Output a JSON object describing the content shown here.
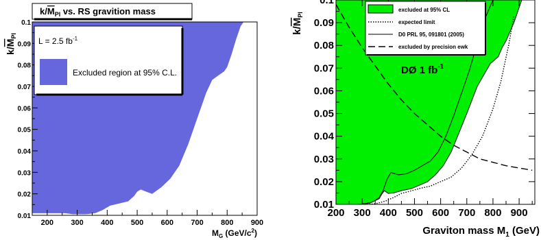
{
  "chart_data": [
    {
      "type": "area",
      "title": "k/M̄Pl vs. RS gravition mass",
      "title_parts": {
        "k": "k/",
        "mbar": "M",
        "sub": "Pl",
        "rest": " vs. RS gravition mass"
      },
      "xlabel": "M_G (GeV/c^2)",
      "xlabel_parts": {
        "m": "M",
        "sub": "G",
        "unit": " (GeV/c",
        "sup": "2",
        "close": ")"
      },
      "ylabel": "k/M̄Pl",
      "ylabel_parts": {
        "k": "k/",
        "m": "M",
        "sub": "Pl"
      },
      "xlim": [
        150,
        900
      ],
      "ylim": [
        0.01,
        0.1
      ],
      "x_ticks": [
        "200",
        "300",
        "400",
        "500",
        "600",
        "700",
        "800",
        "900"
      ],
      "y_ticks": [
        "0.01",
        "0.02",
        "0.03",
        "0.04",
        "0.05",
        "0.06",
        "0.07",
        "0.08",
        "0.09",
        "0.1"
      ],
      "legend": {
        "luminosity_text": "L = 2.5 fb",
        "luminosity_sup": "-1",
        "entry": "Excluded region at 95% C.L.",
        "placement": "top-left"
      },
      "colors": {
        "excluded": "#6666dd"
      },
      "series": [
        {
          "name": "Excluded region at 95% C.L.",
          "x": [
            150,
            235,
            260,
            285,
            300,
            330,
            360,
            385,
            410,
            440,
            470,
            490,
            500,
            512,
            530,
            550,
            580,
            610,
            640,
            670,
            700,
            730,
            750,
            770,
            790,
            800,
            815,
            830,
            845,
            855
          ],
          "y": [
            0.011,
            0.011,
            0.011,
            0.0105,
            0.0105,
            0.0105,
            0.011,
            0.0125,
            0.0145,
            0.0155,
            0.0165,
            0.019,
            0.021,
            0.022,
            0.021,
            0.02,
            0.023,
            0.027,
            0.033,
            0.043,
            0.055,
            0.067,
            0.073,
            0.075,
            0.077,
            0.079,
            0.085,
            0.092,
            0.098,
            0.1
          ]
        }
      ]
    },
    {
      "type": "line",
      "xlabel": "Graviton mass M_1 (GeV)",
      "xlabel_parts": {
        "main": "Graviton mass M",
        "sub": "1",
        "unit": " (GeV)"
      },
      "ylabel": "k/M̄Pl",
      "ylabel_parts": {
        "k": "k/",
        "m": "M",
        "sub": "Pl"
      },
      "xlim": [
        200,
        960
      ],
      "ylim": [
        0.01,
        0.1
      ],
      "x_ticks": [
        "200",
        "300",
        "400",
        "500",
        "600",
        "700",
        "800",
        "900"
      ],
      "y_ticks": [
        "0.01",
        "0.02",
        "0.03",
        "0.04",
        "0.05",
        "0.06",
        "0.07",
        "0.08",
        "0.09",
        "0.1"
      ],
      "annotation": {
        "text": "DØ  1 fb",
        "sup": "-1"
      },
      "legend": {
        "placement": "top",
        "entries": [
          "excluded at 95% CL",
          "expected limit",
          "D0 PRL 95, 091801 (2005)",
          "excluded by precision ewk"
        ]
      },
      "colors": {
        "excluded": "#00ee00"
      },
      "series": [
        {
          "name": "excluded at 95% CL",
          "x": [
            200,
            280,
            330,
            365,
            375,
            385,
            400,
            420,
            450,
            490,
            520,
            550,
            580,
            610,
            640,
            665,
            700,
            740,
            790,
            820,
            835,
            850,
            880,
            910
          ],
          "y": [
            0.01,
            0.01,
            0.0105,
            0.0125,
            0.0145,
            0.016,
            0.0148,
            0.015,
            0.016,
            0.017,
            0.0185,
            0.02,
            0.023,
            0.027,
            0.033,
            0.04,
            0.05,
            0.062,
            0.072,
            0.075,
            0.079,
            0.082,
            0.09,
            0.1
          ]
        },
        {
          "name": "expected limit",
          "x": [
            300,
            330,
            360,
            390,
            420,
            450,
            490,
            520,
            560,
            600,
            640,
            680,
            720,
            760,
            800,
            830,
            845,
            860,
            880
          ],
          "y": [
            0.01,
            0.01,
            0.0105,
            0.0115,
            0.013,
            0.0148,
            0.016,
            0.017,
            0.018,
            0.02,
            0.022,
            0.026,
            0.032,
            0.04,
            0.052,
            0.064,
            0.072,
            0.08,
            0.093
          ]
        },
        {
          "name": "D0 PRL 95, 091801 (2005)",
          "x": [
            300,
            340,
            365,
            380,
            395,
            410,
            440,
            470,
            500,
            530,
            560,
            590,
            620,
            650,
            680,
            710,
            740,
            770,
            800
          ],
          "y": [
            0.01,
            0.011,
            0.013,
            0.016,
            0.021,
            0.024,
            0.023,
            0.0235,
            0.025,
            0.027,
            0.029,
            0.033,
            0.04,
            0.049,
            0.059,
            0.069,
            0.081,
            0.092,
            0.1
          ]
        },
        {
          "name": "excluded by precision ewk",
          "x": [
            200,
            250,
            300,
            350,
            400,
            450,
            500,
            550,
            600,
            650,
            700,
            750,
            800,
            850,
            900,
            950
          ],
          "y": [
            0.098,
            0.088,
            0.079,
            0.071,
            0.063,
            0.056,
            0.05,
            0.045,
            0.04,
            0.036,
            0.033,
            0.03,
            0.0285,
            0.027,
            0.026,
            0.025
          ]
        }
      ]
    }
  ]
}
